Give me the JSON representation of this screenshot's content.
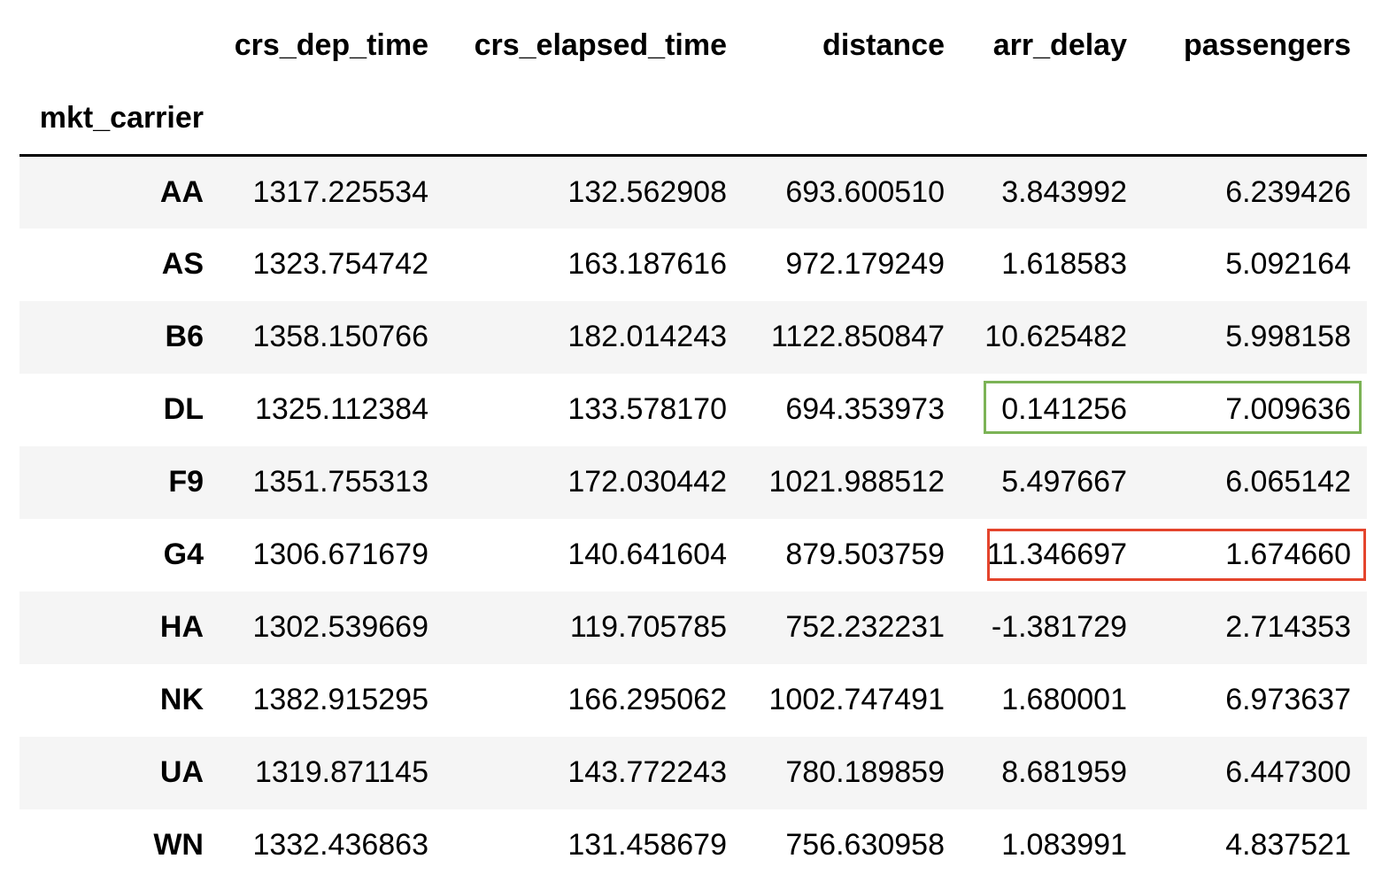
{
  "index_name": "mkt_carrier",
  "columns": [
    "crs_dep_time",
    "crs_elapsed_time",
    "distance",
    "arr_delay",
    "passengers"
  ],
  "rows": [
    {
      "carrier": "AA",
      "values": [
        "1317.225534",
        "132.562908",
        "693.600510",
        "3.843992",
        "6.239426"
      ]
    },
    {
      "carrier": "AS",
      "values": [
        "1323.754742",
        "163.187616",
        "972.179249",
        "1.618583",
        "5.092164"
      ]
    },
    {
      "carrier": "B6",
      "values": [
        "1358.150766",
        "182.014243",
        "1122.850847",
        "10.625482",
        "5.998158"
      ]
    },
    {
      "carrier": "DL",
      "values": [
        "1325.112384",
        "133.578170",
        "694.353973",
        "0.141256",
        "7.009636"
      ]
    },
    {
      "carrier": "F9",
      "values": [
        "1351.755313",
        "172.030442",
        "1021.988512",
        "5.497667",
        "6.065142"
      ]
    },
    {
      "carrier": "G4",
      "values": [
        "1306.671679",
        "140.641604",
        "879.503759",
        "11.346697",
        "1.674660"
      ]
    },
    {
      "carrier": "HA",
      "values": [
        "1302.539669",
        "119.705785",
        "752.232231",
        "-1.381729",
        "2.714353"
      ]
    },
    {
      "carrier": "NK",
      "values": [
        "1382.915295",
        "166.295062",
        "1002.747491",
        "1.680001",
        "6.973637"
      ]
    },
    {
      "carrier": "UA",
      "values": [
        "1319.871145",
        "143.772243",
        "780.189859",
        "8.681959",
        "6.447300"
      ]
    },
    {
      "carrier": "WN",
      "values": [
        "1332.436863",
        "131.458679",
        "756.630958",
        "1.083991",
        "4.837521"
      ]
    }
  ],
  "highlights": [
    {
      "name": "best-carrier-highlight",
      "color": "#7cb356"
    },
    {
      "name": "worst-carrier-highlight",
      "color": "#e4442c"
    }
  ]
}
